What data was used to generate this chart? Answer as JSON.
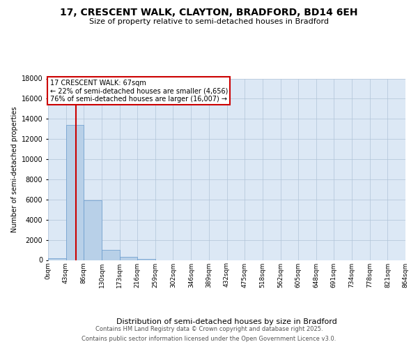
{
  "title": "17, CRESCENT WALK, CLAYTON, BRADFORD, BD14 6EH",
  "subtitle": "Size of property relative to semi-detached houses in Bradford",
  "xlabel": "Distribution of semi-detached houses by size in Bradford",
  "ylabel": "Number of semi-detached properties",
  "property_label": "17 CRESCENT WALK: 67sqm",
  "annotation_smaller": "← 22% of semi-detached houses are smaller (4,656)",
  "annotation_larger": "76% of semi-detached houses are larger (16,007) →",
  "bin_edges": [
    0,
    43,
    86,
    130,
    173,
    216,
    259,
    302,
    346,
    389,
    432,
    475,
    518,
    562,
    605,
    648,
    691,
    734,
    778,
    821,
    864
  ],
  "bin_labels": [
    "0sqm",
    "43sqm",
    "86sqm",
    "130sqm",
    "173sqm",
    "216sqm",
    "259sqm",
    "302sqm",
    "346sqm",
    "389sqm",
    "432sqm",
    "475sqm",
    "518sqm",
    "562sqm",
    "605sqm",
    "648sqm",
    "691sqm",
    "734sqm",
    "778sqm",
    "821sqm",
    "864sqm"
  ],
  "bar_values": [
    200,
    13400,
    5900,
    1000,
    300,
    120,
    0,
    0,
    0,
    0,
    0,
    0,
    0,
    0,
    0,
    0,
    0,
    0,
    0,
    0
  ],
  "bar_color": "#b8d0e8",
  "bar_edge_color": "#6699cc",
  "vline_color": "#cc0000",
  "vline_x": 67,
  "ylim": [
    0,
    18000
  ],
  "yticks": [
    0,
    2000,
    4000,
    6000,
    8000,
    10000,
    12000,
    14000,
    16000,
    18000
  ],
  "annotation_box_color": "#cc0000",
  "background_color": "#ffffff",
  "plot_bg_color": "#dce8f5",
  "grid_color": "#b0c4d8",
  "footer1": "Contains HM Land Registry data © Crown copyright and database right 2025.",
  "footer2": "Contains public sector information licensed under the Open Government Licence v3.0."
}
